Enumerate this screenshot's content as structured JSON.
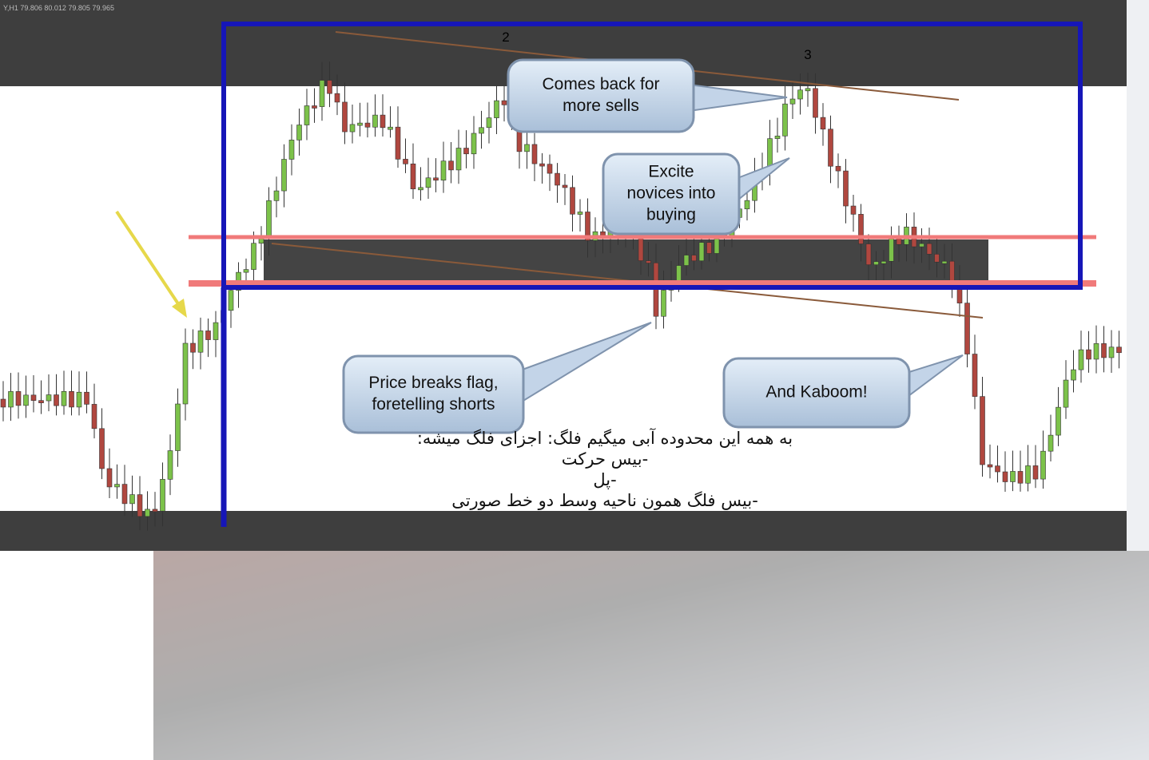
{
  "header": "Y,H1 79.806 80.012 79.805 79.965",
  "wave_labels": [
    "2",
    "3"
  ],
  "callouts": [
    {
      "lines": [
        "Comes back for",
        "more sells"
      ]
    },
    {
      "lines": [
        "Excite",
        "novices into",
        "buying"
      ]
    },
    {
      "lines": [
        "Price breaks flag,",
        "foretelling shorts"
      ]
    },
    {
      "lines": [
        "And Kaboom!"
      ]
    }
  ],
  "notes": [
    "به همه این محدوده آبی میگیم فلگ: اجزای فلگ میشه:",
    "-بیس حرکت",
    "-پل",
    "-بیس فلگ همون ناحیه وسط دو خط صورتی"
  ]
}
